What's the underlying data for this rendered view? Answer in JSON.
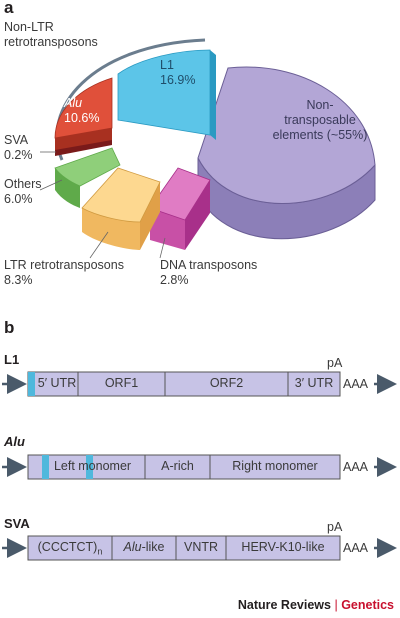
{
  "panel_a": {
    "letter": "a",
    "bracket_label_line1": "Non-LTR",
    "bracket_label_line2": "retrotransposons",
    "slices": [
      {
        "name": "L1",
        "value": "16.9%",
        "color": "#5cc5e8"
      },
      {
        "name": "Alu",
        "value": "10.6%",
        "color": "#e0503a"
      },
      {
        "name": "SVA",
        "value": "0.2%",
        "color": "#7a1a1a"
      },
      {
        "name": "Others",
        "value": "6.0%",
        "color": "#8fcf7a"
      },
      {
        "name": "LTR retrotransposons",
        "value": "8.3%",
        "color": "#fdd890"
      },
      {
        "name": "DNA transposons",
        "value": "2.8%",
        "color": "#e07cc4"
      },
      {
        "name_line1": "Non-",
        "name_line2": "transposable",
        "name_line3": "elements (~55%)",
        "color": "#b3a6d6"
      }
    ]
  },
  "panel_b": {
    "letter": "b",
    "l1": {
      "name": "L1",
      "pa": "pA",
      "tail": "AAA",
      "segments": [
        "5′ UTR",
        "ORF1",
        "ORF2",
        "3′ UTR"
      ]
    },
    "alu": {
      "name": "Alu",
      "tail": "AAA",
      "segments": [
        "Left monomer",
        "A-rich",
        "Right monomer"
      ]
    },
    "sva": {
      "name": "SVA",
      "pa": "pA",
      "tail": "AAA",
      "seg1_main": "(CCCTCT)",
      "seg1_sub": "n",
      "seg2_italic": "Alu",
      "seg2_rest": "-like",
      "segments_rest": [
        "VNTR",
        "HERV-K10-like"
      ]
    }
  },
  "footer": {
    "journal": "Nature Reviews",
    "separator": "|",
    "section": "Genetics",
    "section_color": "#c8102e"
  }
}
